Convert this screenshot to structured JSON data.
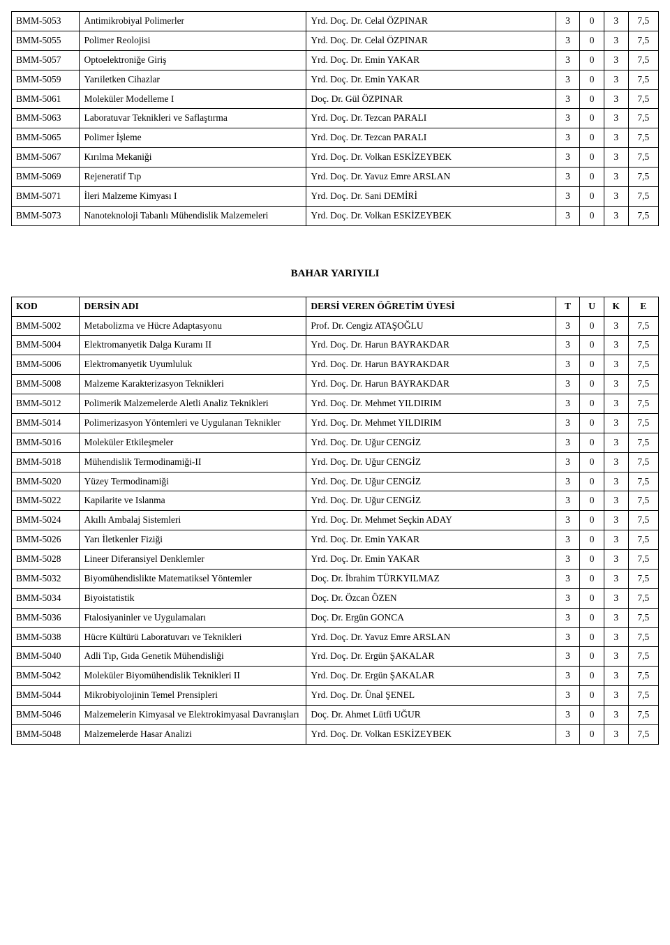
{
  "table1": {
    "rows": [
      {
        "code": "BMM-5053",
        "name": "Antimikrobiyal Polimerler",
        "inst": "Yrd. Doç. Dr. Celal ÖZPINAR",
        "t": "3",
        "u": "0",
        "k": "3",
        "e": "7,5"
      },
      {
        "code": "BMM-5055",
        "name": "Polimer Reolojisi",
        "inst": "Yrd. Doç. Dr. Celal ÖZPINAR",
        "t": "3",
        "u": "0",
        "k": "3",
        "e": "7,5"
      },
      {
        "code": "BMM-5057",
        "name": "Optoelektroniğe Giriş",
        "inst": "Yrd. Doç. Dr. Emin YAKAR",
        "t": "3",
        "u": "0",
        "k": "3",
        "e": "7,5"
      },
      {
        "code": "BMM-5059",
        "name": "Yarıiletken Cihazlar",
        "inst": "Yrd. Doç. Dr. Emin YAKAR",
        "t": "3",
        "u": "0",
        "k": "3",
        "e": "7,5"
      },
      {
        "code": "BMM-5061",
        "name": "Moleküler Modelleme I",
        "inst": "Doç. Dr. Gül ÖZPINAR",
        "t": "3",
        "u": "0",
        "k": "3",
        "e": "7,5"
      },
      {
        "code": "BMM-5063",
        "name": "Laboratuvar Teknikleri ve Saflaştırma",
        "inst": "Yrd. Doç. Dr. Tezcan PARALI",
        "t": "3",
        "u": "0",
        "k": "3",
        "e": "7,5"
      },
      {
        "code": "BMM-5065",
        "name": "Polimer İşleme",
        "inst": "Yrd. Doç. Dr. Tezcan PARALI",
        "t": "3",
        "u": "0",
        "k": "3",
        "e": "7,5"
      },
      {
        "code": "BMM-5067",
        "name": "Kırılma Mekaniği",
        "inst": "Yrd. Doç. Dr. Volkan ESKİZEYBEK",
        "t": "3",
        "u": "0",
        "k": "3",
        "e": "7,5"
      },
      {
        "code": "BMM-5069",
        "name": "Rejeneratif Tıp",
        "inst": "Yrd. Doç. Dr. Yavuz Emre ARSLAN",
        "t": "3",
        "u": "0",
        "k": "3",
        "e": "7,5"
      },
      {
        "code": "BMM-5071",
        "name": "İleri Malzeme Kimyası I",
        "inst": "Yrd. Doç. Dr. Sani DEMİRİ",
        "t": "3",
        "u": "0",
        "k": "3",
        "e": "7,5"
      },
      {
        "code": "BMM-5073",
        "name": "Nanoteknoloji Tabanlı Mühendislik Malzemeleri",
        "inst": "Yrd. Doç. Dr. Volkan ESKİZEYBEK",
        "t": "3",
        "u": "0",
        "k": "3",
        "e": "7,5"
      }
    ]
  },
  "section_title": "BAHAR YARIYILI",
  "table2": {
    "headers": {
      "code": "KOD",
      "name": "DERSİN ADI",
      "inst": "DERSİ VEREN ÖĞRETİM ÜYESİ",
      "t": "T",
      "u": "U",
      "k": "K",
      "e": "E"
    },
    "rows": [
      {
        "code": "BMM-5002",
        "name": "Metabolizma ve Hücre Adaptasyonu",
        "inst": "Prof. Dr. Cengiz ATAŞOĞLU",
        "t": "3",
        "u": "0",
        "k": "3",
        "e": "7,5"
      },
      {
        "code": "BMM-5004",
        "name": "Elektromanyetik Dalga Kuramı II",
        "inst": "Yrd. Doç. Dr. Harun BAYRAKDAR",
        "t": "3",
        "u": "0",
        "k": "3",
        "e": "7,5"
      },
      {
        "code": "BMM-5006",
        "name": "Elektromanyetik Uyumluluk",
        "inst": "Yrd. Doç. Dr. Harun BAYRAKDAR",
        "t": "3",
        "u": "0",
        "k": "3",
        "e": "7,5"
      },
      {
        "code": "BMM-5008",
        "name": "Malzeme Karakterizasyon Teknikleri",
        "inst": "Yrd. Doç. Dr. Harun BAYRAKDAR",
        "t": "3",
        "u": "0",
        "k": "3",
        "e": "7,5"
      },
      {
        "code": "BMM-5012",
        "name": "Polimerik Malzemelerde Aletli Analiz Teknikleri",
        "inst": "Yrd. Doç. Dr. Mehmet YILDIRIM",
        "t": "3",
        "u": "0",
        "k": "3",
        "e": "7,5"
      },
      {
        "code": "BMM-5014",
        "name": "Polimerizasyon Yöntemleri ve Uygulanan Teknikler",
        "inst": "Yrd. Doç. Dr. Mehmet YILDIRIM",
        "t": "3",
        "u": "0",
        "k": "3",
        "e": "7,5"
      },
      {
        "code": "BMM-5016",
        "name": "Moleküler Etkileşmeler",
        "inst": "Yrd. Doç. Dr. Uğur CENGİZ",
        "t": "3",
        "u": "0",
        "k": "3",
        "e": "7,5"
      },
      {
        "code": "BMM-5018",
        "name": "Mühendislik Termodinamiği-II",
        "inst": "Yrd. Doç. Dr. Uğur CENGİZ",
        "t": "3",
        "u": "0",
        "k": "3",
        "e": "7,5"
      },
      {
        "code": "BMM-5020",
        "name": "Yüzey Termodinamiği",
        "inst": "Yrd. Doç. Dr. Uğur CENGİZ",
        "t": "3",
        "u": "0",
        "k": "3",
        "e": "7,5"
      },
      {
        "code": "BMM-5022",
        "name": "Kapilarite ve Islanma",
        "inst": "Yrd. Doç. Dr. Uğur CENGİZ",
        "t": "3",
        "u": "0",
        "k": "3",
        "e": "7,5"
      },
      {
        "code": "BMM-5024",
        "name": "Akıllı Ambalaj Sistemleri",
        "inst": "Yrd. Doç. Dr. Mehmet Seçkin ADAY",
        "t": "3",
        "u": "0",
        "k": "3",
        "e": "7,5"
      },
      {
        "code": "BMM-5026",
        "name": "Yarı İletkenler Fiziği",
        "inst": "Yrd. Doç. Dr. Emin YAKAR",
        "t": "3",
        "u": "0",
        "k": "3",
        "e": "7,5"
      },
      {
        "code": "BMM-5028",
        "name": "Lineer Diferansiyel Denklemler",
        "inst": "Yrd. Doç. Dr. Emin YAKAR",
        "t": "3",
        "u": "0",
        "k": "3",
        "e": "7,5"
      },
      {
        "code": "BMM-5032",
        "name": "Biyomühendislikte Matematiksel Yöntemler",
        "inst": "Doç. Dr. İbrahim TÜRKYILMAZ",
        "t": "3",
        "u": "0",
        "k": "3",
        "e": "7,5"
      },
      {
        "code": "BMM-5034",
        "name": "Biyoistatistik",
        "inst": "Doç. Dr. Özcan ÖZEN",
        "t": "3",
        "u": "0",
        "k": "3",
        "e": "7,5"
      },
      {
        "code": "BMM-5036",
        "name": "Ftalosiyaninler ve Uygulamaları",
        "inst": "Doç. Dr. Ergün GONCA",
        "t": "3",
        "u": "0",
        "k": "3",
        "e": "7,5"
      },
      {
        "code": "BMM-5038",
        "name": "Hücre Kültürü Laboratuvarı ve Teknikleri",
        "inst": "Yrd. Doç. Dr. Yavuz Emre ARSLAN",
        "t": "3",
        "u": "0",
        "k": "3",
        "e": "7,5"
      },
      {
        "code": "BMM-5040",
        "name": "Adli Tıp, Gıda Genetik Mühendisliği",
        "inst": "Yrd. Doç. Dr. Ergün ŞAKALAR",
        "t": "3",
        "u": "0",
        "k": "3",
        "e": "7,5"
      },
      {
        "code": "BMM-5042",
        "name": "Moleküler Biyomühendislik Teknikleri II",
        "inst": "Yrd. Doç. Dr. Ergün ŞAKALAR",
        "t": "3",
        "u": "0",
        "k": "3",
        "e": "7,5"
      },
      {
        "code": "BMM-5044",
        "name": "Mikrobiyolojinin Temel Prensipleri",
        "inst": "Yrd. Doç. Dr. Ünal ŞENEL",
        "t": "3",
        "u": "0",
        "k": "3",
        "e": "7,5"
      },
      {
        "code": "BMM-5046",
        "name": "Malzemelerin Kimyasal ve Elektrokimyasal Davranışları",
        "inst": "Doç. Dr. Ahmet Lütfi UĞUR",
        "t": "3",
        "u": "0",
        "k": "3",
        "e": "7,5"
      },
      {
        "code": "BMM-5048",
        "name": "Malzemelerde Hasar Analizi",
        "inst": "Yrd. Doç. Dr. Volkan ESKİZEYBEK",
        "t": "3",
        "u": "0",
        "k": "3",
        "e": "7,5"
      }
    ]
  }
}
